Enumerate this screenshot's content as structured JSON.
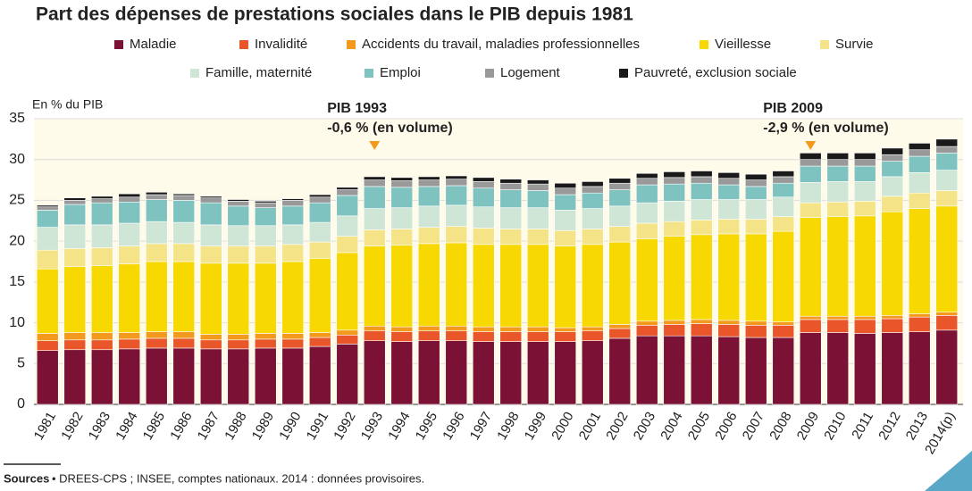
{
  "chart_data": {
    "type": "stacked_bar",
    "title": "Part des dépenses de prestations sociales dans le PIB depuis 1981",
    "y_label": "En % du PIB",
    "categories": [
      "1981",
      "1982",
      "1983",
      "1984",
      "1985",
      "1986",
      "1987",
      "1988",
      "1989",
      "1990",
      "1991",
      "1992",
      "1993",
      "1994",
      "1995",
      "1996",
      "1997",
      "1998",
      "1999",
      "2000",
      "2001",
      "2002",
      "2003",
      "2004",
      "2005",
      "2006",
      "2007",
      "2008",
      "2009",
      "2010",
      "2011",
      "2012",
      "2013",
      "2014(p)"
    ],
    "series": [
      {
        "name": "Maladie",
        "color": "#7b1235",
        "values": [
          6.6,
          6.7,
          6.7,
          6.8,
          6.9,
          6.9,
          6.8,
          6.8,
          6.9,
          6.9,
          7.1,
          7.4,
          7.8,
          7.7,
          7.8,
          7.8,
          7.7,
          7.7,
          7.7,
          7.7,
          7.8,
          8.1,
          8.4,
          8.4,
          8.4,
          8.3,
          8.2,
          8.2,
          8.8,
          8.8,
          8.7,
          8.8,
          8.9,
          9.1
        ]
      },
      {
        "name": "Invalidité",
        "color": "#e8562a",
        "values": [
          1.2,
          1.2,
          1.2,
          1.2,
          1.2,
          1.2,
          1.1,
          1.1,
          1.1,
          1.1,
          1.1,
          1.1,
          1.2,
          1.2,
          1.2,
          1.2,
          1.2,
          1.2,
          1.2,
          1.2,
          1.2,
          1.2,
          1.3,
          1.4,
          1.5,
          1.5,
          1.5,
          1.5,
          1.6,
          1.6,
          1.7,
          1.7,
          1.8,
          1.8
        ]
      },
      {
        "name": "Accidents du travail, maladies professionnelles",
        "color": "#f39a1e",
        "values": [
          0.9,
          0.9,
          0.9,
          0.8,
          0.8,
          0.8,
          0.7,
          0.7,
          0.7,
          0.7,
          0.6,
          0.6,
          0.6,
          0.6,
          0.6,
          0.6,
          0.6,
          0.6,
          0.6,
          0.5,
          0.5,
          0.5,
          0.5,
          0.5,
          0.5,
          0.5,
          0.5,
          0.4,
          0.4,
          0.4,
          0.4,
          0.4,
          0.4,
          0.4
        ]
      },
      {
        "name": "Vieillesse",
        "color": "#f7d800",
        "values": [
          7.9,
          8.1,
          8.2,
          8.4,
          8.6,
          8.6,
          8.7,
          8.7,
          8.6,
          8.8,
          9.1,
          9.5,
          9.8,
          10.0,
          10.1,
          10.2,
          10.1,
          10.1,
          10.1,
          10.0,
          10.1,
          10.1,
          10.1,
          10.3,
          10.4,
          10.6,
          10.7,
          11.1,
          12.1,
          12.2,
          12.3,
          12.7,
          12.9,
          13.0
        ]
      },
      {
        "name": "Survie",
        "color": "#f5e487",
        "values": [
          2.3,
          2.2,
          2.2,
          2.2,
          2.2,
          2.2,
          2.1,
          2.1,
          2.1,
          2.1,
          2.0,
          2.0,
          2.0,
          2.0,
          2.0,
          2.0,
          2.0,
          1.9,
          1.9,
          1.9,
          1.9,
          1.9,
          1.9,
          1.8,
          1.8,
          1.8,
          1.8,
          1.8,
          1.8,
          1.8,
          1.8,
          1.9,
          1.9,
          1.9
        ]
      },
      {
        "name": "Famille, maternité",
        "color": "#cfe6d6",
        "values": [
          2.8,
          2.9,
          2.8,
          2.8,
          2.7,
          2.6,
          2.6,
          2.5,
          2.5,
          2.4,
          2.4,
          2.5,
          2.6,
          2.6,
          2.6,
          2.6,
          2.6,
          2.6,
          2.6,
          2.5,
          2.5,
          2.5,
          2.5,
          2.5,
          2.5,
          2.4,
          2.4,
          2.4,
          2.5,
          2.5,
          2.4,
          2.4,
          2.5,
          2.5
        ]
      },
      {
        "name": "Emploi",
        "color": "#7fc3c0",
        "values": [
          2.1,
          2.5,
          2.7,
          2.6,
          2.7,
          2.7,
          2.7,
          2.4,
          2.2,
          2.3,
          2.4,
          2.5,
          2.7,
          2.5,
          2.4,
          2.4,
          2.3,
          2.2,
          2.1,
          1.9,
          1.9,
          2.0,
          2.2,
          2.1,
          2.0,
          1.8,
          1.6,
          1.7,
          2.0,
          1.9,
          1.9,
          1.9,
          2.0,
          2.1
        ]
      },
      {
        "name": "Logement",
        "color": "#999999",
        "values": [
          0.4,
          0.5,
          0.5,
          0.6,
          0.6,
          0.6,
          0.6,
          0.6,
          0.6,
          0.7,
          0.7,
          0.7,
          0.8,
          0.8,
          0.8,
          0.8,
          0.8,
          0.8,
          0.8,
          0.8,
          0.8,
          0.8,
          0.8,
          0.8,
          0.8,
          0.8,
          0.8,
          0.8,
          0.8,
          0.8,
          0.8,
          0.8,
          0.8,
          0.8
        ]
      },
      {
        "name": "Pauvreté, exclusion sociale",
        "color": "#1a1a1a",
        "values": [
          0.2,
          0.3,
          0.3,
          0.4,
          0.3,
          0.2,
          0.2,
          0.2,
          0.2,
          0.2,
          0.3,
          0.3,
          0.4,
          0.4,
          0.4,
          0.4,
          0.5,
          0.5,
          0.5,
          0.6,
          0.6,
          0.6,
          0.6,
          0.7,
          0.7,
          0.7,
          0.7,
          0.7,
          0.8,
          0.8,
          0.8,
          0.8,
          0.8,
          0.9
        ]
      }
    ],
    "ylim": [
      0,
      35
    ],
    "yticks": [
      0,
      5,
      10,
      15,
      20,
      25,
      30,
      35
    ],
    "grid": true,
    "annotations": [
      {
        "category": "1993",
        "lines": [
          "PIB 1993",
          "-0,6 % (en volume)"
        ],
        "color": "#f39a1e"
      },
      {
        "category": "2009",
        "lines": [
          "PIB 2009",
          "-2,9 % (en volume)"
        ],
        "color": "#f39a1e"
      }
    ],
    "source": {
      "label": "Sources",
      "text": "• DREES-CPS ; INSEE, comptes nationaux. 2014 : données provisoires."
    }
  }
}
